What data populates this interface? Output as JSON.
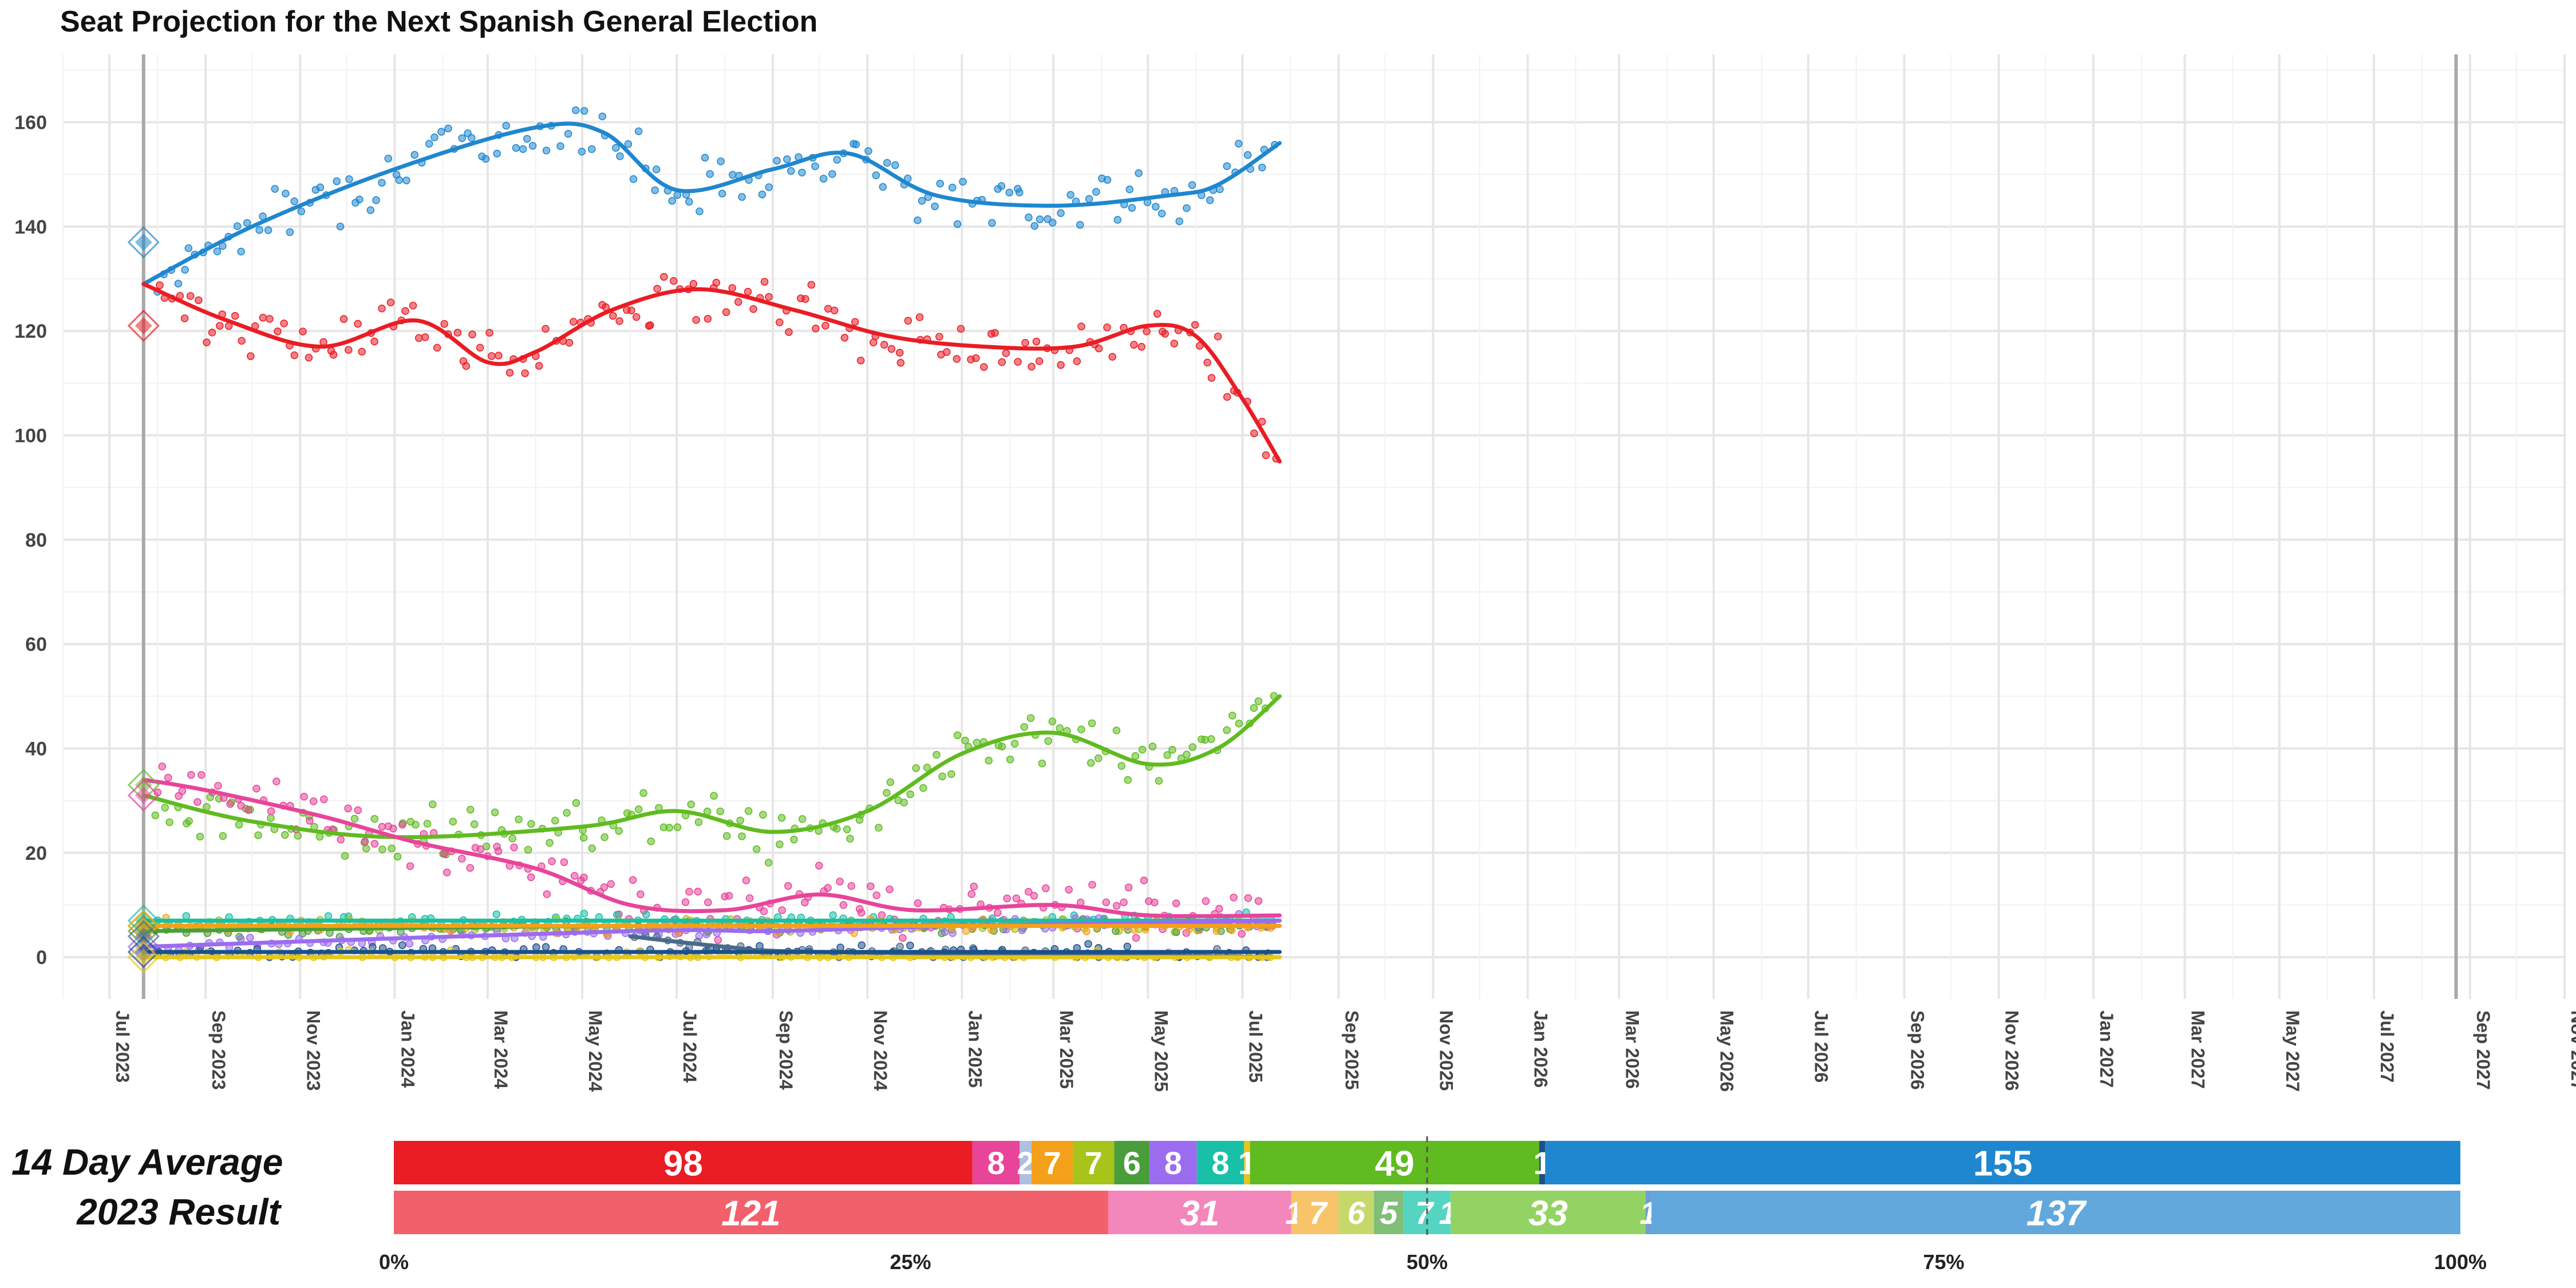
{
  "chart_data": [
    {
      "type": "line",
      "title": "Seat Projection for the Next Spanish General Election",
      "xlabel": "",
      "ylabel": "",
      "ylim": [
        -8,
        173
      ],
      "yticks": [
        0,
        20,
        40,
        60,
        80,
        100,
        120,
        140,
        160
      ],
      "xlim": [
        "2023-06-01",
        "2027-11-01"
      ],
      "xticks": [
        "Jul 2023",
        "Sep 2023",
        "Nov 2023",
        "Jan 2024",
        "Mar 2024",
        "May 2024",
        "Jul 2024",
        "Sep 2024",
        "Nov 2024",
        "Jan 2025",
        "Mar 2025",
        "May 2025",
        "Jul 2025",
        "Sep 2025",
        "Nov 2025",
        "Jan 2026",
        "Mar 2026",
        "May 2026",
        "Jul 2026",
        "Sep 2026",
        "Nov 2026",
        "Jan 2027",
        "Mar 2027",
        "May 2027",
        "Jul 2027",
        "Sep 2027",
        "Nov 2027"
      ],
      "xtick_dates": [
        "2023-07-01",
        "2023-09-01",
        "2023-11-01",
        "2024-01-01",
        "2024-03-01",
        "2024-05-01",
        "2024-07-01",
        "2024-09-01",
        "2024-11-01",
        "2025-01-01",
        "2025-03-01",
        "2025-05-01",
        "2025-07-01",
        "2025-09-01",
        "2025-11-01",
        "2026-01-01",
        "2026-03-01",
        "2026-05-01",
        "2026-07-01",
        "2026-09-01",
        "2026-11-01",
        "2027-01-01",
        "2027-03-01",
        "2027-05-01",
        "2027-07-01",
        "2027-09-01",
        "2027-11-01"
      ],
      "vlines": [
        "2023-07-23",
        "2027-08-23"
      ],
      "grid": true,
      "series": [
        {
          "color": "#1f87cf",
          "result_2023": 137,
          "x": [
            "2023-07-23",
            "2023-10-01",
            "2024-01-01",
            "2024-04-01",
            "2024-05-15",
            "2024-07-01",
            "2024-09-01",
            "2024-10-20",
            "2024-12-15",
            "2025-03-01",
            "2025-05-15",
            "2025-06-15",
            "2025-07-25"
          ],
          "y": [
            129,
            140,
            151,
            159,
            158,
            147,
            151,
            154,
            146,
            144,
            146,
            148,
            156
          ]
        },
        {
          "color": "#ea1c24",
          "result_2023": 121,
          "x": [
            "2023-07-23",
            "2023-09-15",
            "2023-11-15",
            "2024-01-15",
            "2024-03-01",
            "2024-04-01",
            "2024-05-20",
            "2024-07-15",
            "2024-09-15",
            "2024-11-15",
            "2025-01-15",
            "2025-03-15",
            "2025-05-01",
            "2025-06-01",
            "2025-07-01",
            "2025-07-25"
          ],
          "y": [
            129,
            122,
            117,
            122,
            114,
            116,
            124,
            128,
            124,
            119,
            117,
            117,
            121,
            119,
            107,
            95
          ]
        },
        {
          "color": "#5fbb1f",
          "result_2023": 33,
          "x": [
            "2023-07-23",
            "2023-10-01",
            "2024-01-01",
            "2024-05-01",
            "2024-07-01",
            "2024-09-01",
            "2024-11-01",
            "2025-01-01",
            "2025-03-01",
            "2025-05-01",
            "2025-06-15",
            "2025-07-25"
          ],
          "y": [
            31,
            26,
            23,
            25,
            28,
            24,
            28,
            39,
            43,
            37,
            40,
            50
          ]
        },
        {
          "color": "#e8449a",
          "result_2023": 31,
          "x": [
            "2023-07-23",
            "2023-09-01",
            "2023-11-15",
            "2024-01-15",
            "2024-04-01",
            "2024-06-01",
            "2024-08-01",
            "2024-10-01",
            "2024-12-01",
            "2025-03-01",
            "2025-05-01",
            "2025-07-25"
          ],
          "y": [
            34,
            32,
            27,
            22,
            17,
            10,
            9,
            12,
            9,
            10,
            8,
            8
          ]
        },
        {
          "color": "#18c0a8",
          "result_2023": 7,
          "x": [
            "2023-07-23",
            "2024-06-01",
            "2025-07-25"
          ],
          "y": [
            7,
            7,
            7
          ]
        },
        {
          "color": "#a6c41a",
          "result_2023": 6,
          "x": [
            "2023-07-23",
            "2024-06-01",
            "2025-07-25"
          ],
          "y": [
            6,
            6,
            6
          ]
        },
        {
          "color": "#4a9e3a",
          "result_2023": 5,
          "x": [
            "2023-07-23",
            "2024-06-01",
            "2025-07-25"
          ],
          "y": [
            5,
            6,
            6
          ]
        },
        {
          "color": "#9b6cf0",
          "result_2023": 1,
          "x": [
            "2023-07-23",
            "2024-06-01",
            "2024-09-01",
            "2025-01-01",
            "2025-07-25"
          ],
          "y": [
            2,
            5,
            5,
            6,
            7
          ]
        },
        {
          "color": "#f5a01a",
          "result_2023": 7,
          "x": [
            "2023-07-23",
            "2024-06-01",
            "2025-07-25"
          ],
          "y": [
            6,
            6,
            6
          ]
        },
        {
          "color": "#4a6a8a",
          "result_2023": 1,
          "x": [
            "2024-06-01",
            "2024-08-01",
            "2024-10-01",
            "2025-07-25"
          ],
          "y": [
            4,
            2,
            1,
            0
          ]
        },
        {
          "color": "#1a4f8a",
          "result_2023": 1,
          "x": [
            "2023-07-23",
            "2025-07-25"
          ],
          "y": [
            1,
            1
          ]
        },
        {
          "color": "#e6c619",
          "result_2023": 1,
          "x": [
            "2023-07-23",
            "2025-07-25"
          ],
          "y": [
            0,
            0
          ]
        }
      ]
    },
    {
      "type": "bar",
      "orientation": "horizontal-stacked",
      "categories": [
        "14 Day Average",
        "2023 Result"
      ],
      "xticks": [
        "0%",
        "25%",
        "50%",
        "75%",
        "100%"
      ],
      "xlim": [
        0,
        350
      ],
      "rows": [
        {
          "label": "14 Day Average",
          "italic": false,
          "segments": [
            {
              "value": 98,
              "label": "98",
              "color": "#ea1c24"
            },
            {
              "value": 8,
              "label": "8",
              "color": "#e8449a"
            },
            {
              "value": 2,
              "label": "2",
              "color": "#aebfe0"
            },
            {
              "value": 7,
              "label": "7",
              "color": "#f5a01a"
            },
            {
              "value": 7,
              "label": "7",
              "color": "#a6c41a"
            },
            {
              "value": 6,
              "label": "6",
              "color": "#4a9e3a"
            },
            {
              "value": 8,
              "label": "8",
              "color": "#9b6cf0"
            },
            {
              "value": 8,
              "label": "8",
              "color": "#18c0a8"
            },
            {
              "value": 1,
              "label": "1",
              "color": "#e6c619"
            },
            {
              "value": 49,
              "label": "49",
              "color": "#5fbb1f"
            },
            {
              "value": 1,
              "label": "1",
              "color": "#1a4f8a"
            },
            {
              "value": 155,
              "label": "155",
              "color": "#1f87cf"
            }
          ]
        },
        {
          "label": "2023 Result",
          "italic": true,
          "segments": [
            {
              "value": 121,
              "label": "121",
              "color": "#f2616b"
            },
            {
              "value": 31,
              "label": "31",
              "color": "#f386bb"
            },
            {
              "value": 1,
              "label": "1",
              "color": "#f7c46a"
            },
            {
              "value": 7,
              "label": "7",
              "color": "#f7c46a"
            },
            {
              "value": 6,
              "label": "6",
              "color": "#c6d86a"
            },
            {
              "value": 5,
              "label": "5",
              "color": "#7fbf78"
            },
            {
              "value": 7,
              "label": "7",
              "color": "#55d4c2"
            },
            {
              "value": 1,
              "label": "1",
              "color": "#55d4c2"
            },
            {
              "value": 33,
              "label": "33",
              "color": "#93d363"
            },
            {
              "value": 1,
              "label": "1",
              "color": "#6aa0d4"
            },
            {
              "value": 137,
              "label": "137",
              "color": "#62a8dc"
            }
          ]
        }
      ],
      "majority_line": "50%"
    }
  ]
}
